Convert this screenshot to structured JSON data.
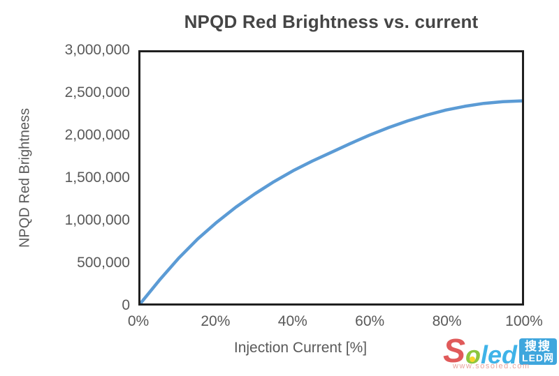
{
  "chart": {
    "title": "NPQD Red Brightness vs. current",
    "y_axis": {
      "title": "NPQD Red Brightness",
      "ticks": [
        "3,000,000",
        "2,500,000",
        "2,000,000",
        "1,500,000",
        "1,000,000",
        "500,000",
        "0"
      ]
    },
    "x_axis": {
      "title": "Injection Current [%]",
      "ticks": [
        "0%",
        "20%",
        "40%",
        "60%",
        "80%",
        "100%"
      ]
    }
  },
  "chart_data": {
    "type": "line",
    "title": "NPQD Red Brightness vs. current",
    "xlabel": "Injection Current [%]",
    "ylabel": "NPQD Red Brightness",
    "x": [
      0,
      5,
      10,
      15,
      20,
      25,
      30,
      35,
      40,
      45,
      50,
      55,
      60,
      65,
      70,
      75,
      80,
      85,
      90,
      95,
      100
    ],
    "y": [
      0,
      280000,
      540000,
      770000,
      970000,
      1150000,
      1310000,
      1455000,
      1585000,
      1700000,
      1805000,
      1910000,
      2010000,
      2100000,
      2180000,
      2250000,
      2310000,
      2355000,
      2390000,
      2410000,
      2420000
    ],
    "xlim": [
      0,
      100
    ],
    "ylim": [
      0,
      3000000
    ],
    "x_tick_labels": [
      "0%",
      "20%",
      "40%",
      "60%",
      "80%",
      "100%"
    ],
    "y_tick_labels": [
      "0",
      "500,000",
      "1,000,000",
      "1,500,000",
      "2,000,000",
      "2,500,000",
      "3,000,000"
    ],
    "grid": false,
    "legend_position": "none",
    "line_color": "#5B9BD5"
  },
  "watermark": {
    "brand_s": "S",
    "brand_o": "o",
    "brand_led": "led",
    "badge_line1": "搜搜",
    "badge_line2": "LED网",
    "url": "www.sosoled.com"
  },
  "colors": {
    "line": "#5B9BD5",
    "frame": "#1f1f1f",
    "title_text": "#454545",
    "axis_text": "#595959",
    "brand_red": "#E05A5A",
    "brand_green": "#8DC63F",
    "brand_cyan": "#3FB3E8",
    "badge_bg": "#3FA6DD",
    "url_pink": "#E8A49E"
  }
}
